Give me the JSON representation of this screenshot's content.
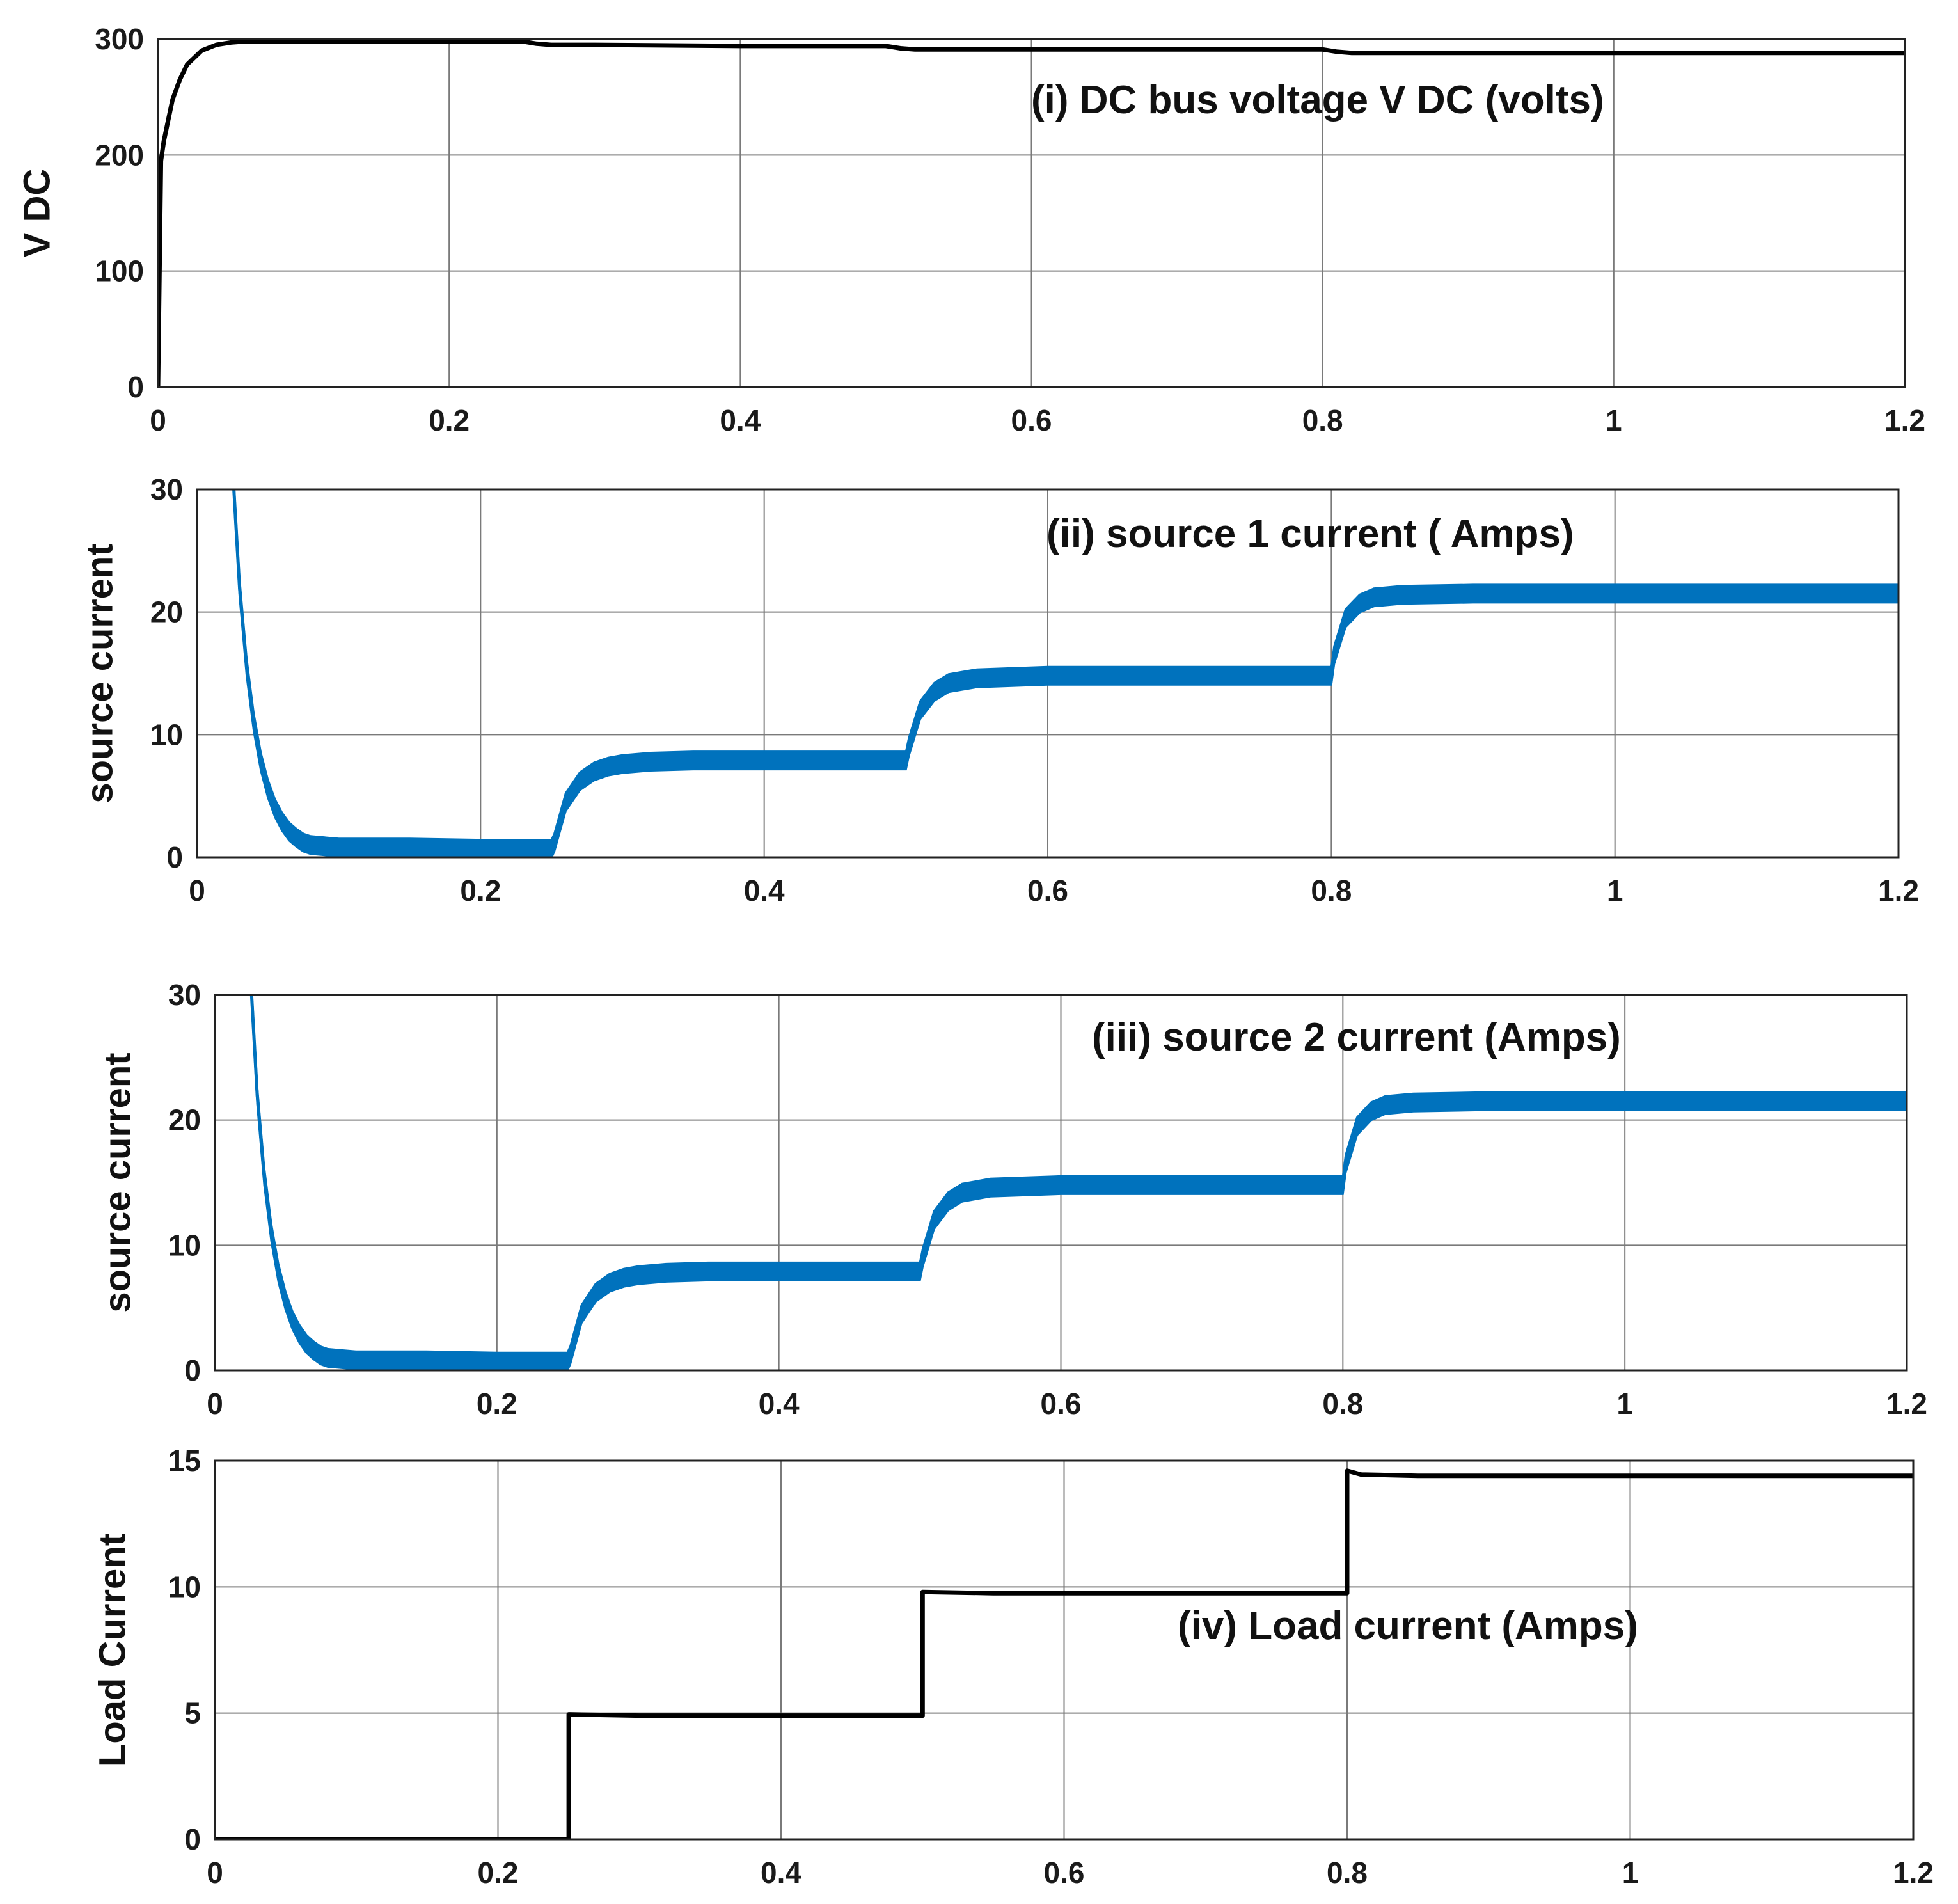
{
  "colors": {
    "black_series": "#000000",
    "blue_series": "#0072bd",
    "grid": "#7a7a7a",
    "frame": "#222222"
  },
  "chart_data": [
    {
      "type": "line",
      "title": "(i) DC bus voltage V DC (volts)",
      "xlabel": "",
      "ylabel": "V DC",
      "xlim": [
        0,
        1.2
      ],
      "ylim": [
        0,
        300
      ],
      "xticks": [
        0,
        0.2,
        0.4,
        0.6,
        0.8,
        1,
        1.2
      ],
      "xtick_labels": [
        "0",
        "0.2",
        "0.4",
        "0.6",
        "0.8",
        "1",
        "1.2"
      ],
      "yticks": [
        0,
        100,
        200,
        300
      ],
      "ytick_labels": [
        "0",
        "100",
        "200",
        "300"
      ],
      "grid": true,
      "series": [
        {
          "name": "V DC",
          "color": "#000000",
          "x": [
            0,
            0.002,
            0.004,
            0.007,
            0.01,
            0.015,
            0.02,
            0.03,
            0.04,
            0.05,
            0.06,
            0.08,
            0.1,
            0.15,
            0.2,
            0.25,
            0.26,
            0.27,
            0.3,
            0.4,
            0.5,
            0.51,
            0.52,
            0.6,
            0.7,
            0.8,
            0.81,
            0.82,
            0.9,
            1.0,
            1.1,
            1.2
          ],
          "y": [
            0,
            195,
            212,
            230,
            248,
            265,
            278,
            290,
            295,
            297,
            298,
            298,
            298,
            298,
            298,
            298,
            296,
            295,
            295,
            294,
            294,
            292,
            291,
            291,
            291,
            291,
            289,
            288,
            288,
            288,
            288,
            288
          ]
        }
      ]
    },
    {
      "type": "line",
      "title": "(ii) source 1 current ( Amps)",
      "xlabel": "",
      "ylabel": "source current",
      "xlim": [
        0,
        1.2
      ],
      "ylim": [
        0,
        30
      ],
      "xticks": [
        0,
        0.2,
        0.4,
        0.6,
        0.8,
        1,
        1.2
      ],
      "xtick_labels": [
        "0",
        "0.2",
        "0.4",
        "0.6",
        "0.8",
        "1",
        "1.2"
      ],
      "yticks": [
        0,
        10,
        20,
        30
      ],
      "ytick_labels": [
        "0",
        "10",
        "20",
        "30"
      ],
      "grid": true,
      "series": [
        {
          "name": "source 1 current",
          "color": "#0072bd",
          "x": [
            0.026,
            0.03,
            0.035,
            0.04,
            0.045,
            0.05,
            0.055,
            0.06,
            0.065,
            0.07,
            0.075,
            0.08,
            0.09,
            0.1,
            0.15,
            0.2,
            0.25,
            0.252,
            0.26,
            0.27,
            0.28,
            0.29,
            0.3,
            0.32,
            0.35,
            0.4,
            0.5,
            0.502,
            0.51,
            0.52,
            0.53,
            0.55,
            0.6,
            0.7,
            0.8,
            0.802,
            0.81,
            0.82,
            0.83,
            0.85,
            0.9,
            1.0,
            1.1,
            1.2
          ],
          "y": [
            30,
            22,
            15.5,
            11,
            7.8,
            5.6,
            4.0,
            2.9,
            2.1,
            1.6,
            1.2,
            1.0,
            0.9,
            0.8,
            0.8,
            0.7,
            0.7,
            1.2,
            4.5,
            6.2,
            7.0,
            7.4,
            7.6,
            7.8,
            7.9,
            7.9,
            7.9,
            9.0,
            12.0,
            13.5,
            14.2,
            14.6,
            14.8,
            14.8,
            14.8,
            16.5,
            19.5,
            20.7,
            21.2,
            21.4,
            21.5,
            21.5,
            21.5,
            21.5
          ]
        }
      ]
    },
    {
      "type": "line",
      "title": "(iii) source 2 current (Amps)",
      "xlabel": "",
      "ylabel": "source  current",
      "xlim": [
        0,
        1.2
      ],
      "ylim": [
        0,
        30
      ],
      "xticks": [
        0,
        0.2,
        0.4,
        0.6,
        0.8,
        1,
        1.2
      ],
      "xtick_labels": [
        "0",
        "0.2",
        "0.4",
        "0.6",
        "0.8",
        "1",
        "1.2"
      ],
      "yticks": [
        0,
        10,
        20,
        30
      ],
      "ytick_labels": [
        "0",
        "10",
        "20",
        "30"
      ],
      "grid": true,
      "series": [
        {
          "name": "source 2 current",
          "color": "#0072bd",
          "x": [
            0.026,
            0.03,
            0.035,
            0.04,
            0.045,
            0.05,
            0.055,
            0.06,
            0.065,
            0.07,
            0.075,
            0.08,
            0.09,
            0.1,
            0.15,
            0.2,
            0.25,
            0.252,
            0.26,
            0.27,
            0.28,
            0.29,
            0.3,
            0.32,
            0.35,
            0.4,
            0.5,
            0.502,
            0.51,
            0.52,
            0.53,
            0.55,
            0.6,
            0.7,
            0.8,
            0.802,
            0.81,
            0.82,
            0.83,
            0.85,
            0.9,
            1.0,
            1.1,
            1.2
          ],
          "y": [
            30,
            22,
            15.5,
            11,
            7.8,
            5.6,
            4.0,
            2.9,
            2.1,
            1.6,
            1.2,
            1.0,
            0.9,
            0.8,
            0.8,
            0.7,
            0.7,
            1.2,
            4.5,
            6.2,
            7.0,
            7.4,
            7.6,
            7.8,
            7.9,
            7.9,
            7.9,
            9.0,
            12.0,
            13.5,
            14.2,
            14.6,
            14.8,
            14.8,
            14.8,
            16.5,
            19.5,
            20.7,
            21.2,
            21.4,
            21.5,
            21.5,
            21.5,
            21.5
          ]
        }
      ]
    },
    {
      "type": "line",
      "title": "(iv) Load current (Amps)",
      "xlabel": "",
      "ylabel": "Load Current",
      "xlim": [
        0,
        1.2
      ],
      "ylim": [
        0,
        15
      ],
      "xticks": [
        0,
        0.2,
        0.4,
        0.6,
        0.8,
        1,
        1.2
      ],
      "xtick_labels": [
        "0",
        "0.2",
        "0.4",
        "0.6",
        "0.8",
        "1",
        "1.2"
      ],
      "yticks": [
        0,
        5,
        10,
        15
      ],
      "ytick_labels": [
        "0",
        "5",
        "10",
        "15"
      ],
      "grid": true,
      "series": [
        {
          "name": "Load current",
          "color": "#000000",
          "x": [
            0,
            0.25,
            0.25,
            0.3,
            0.5,
            0.5,
            0.55,
            0.8,
            0.8,
            0.81,
            0.85,
            1.2
          ],
          "y": [
            0,
            0,
            4.95,
            4.9,
            4.9,
            9.8,
            9.75,
            9.75,
            14.6,
            14.45,
            14.4,
            14.4
          ]
        }
      ]
    }
  ]
}
